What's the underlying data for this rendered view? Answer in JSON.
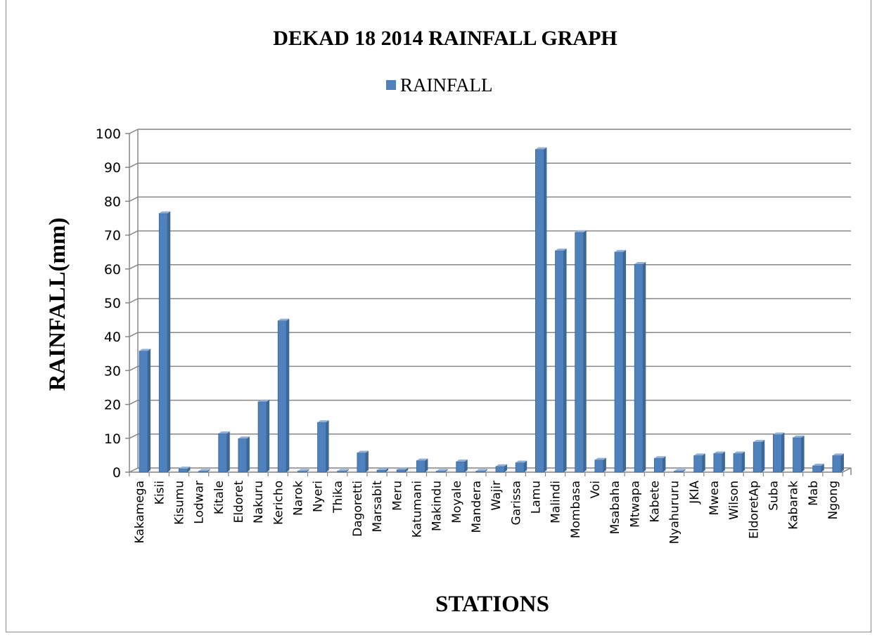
{
  "chart_data": {
    "type": "bar",
    "title": "DEKAD 18 2014 RAINFALL GRAPH",
    "xlabel": "STATIONS",
    "ylabel": "RAINFALL(mm)",
    "ylim": [
      0,
      100
    ],
    "yticks": [
      0,
      10,
      20,
      30,
      40,
      50,
      60,
      70,
      80,
      90,
      100
    ],
    "grid": true,
    "legend_position": "top",
    "categories": [
      "Kakamega",
      "Kisii",
      "Kisumu",
      "Lodwar",
      "Kitale",
      "Eldoret",
      "Nakuru",
      "Kericho",
      "Narok",
      "Nyeri",
      "Thika",
      "Dagoretti",
      "Marsabit",
      "Meru",
      "Katumani",
      "Makindu",
      "Moyale",
      "Mandera",
      "Wajir",
      "Garissa",
      "Lamu",
      "Malindi",
      "Mombasa",
      "Voi",
      "Msabaha",
      "Mtwapa",
      "Kabete",
      "Nyahururu",
      "JKIA",
      "Mwea",
      "Wilson",
      "EldoretAp",
      "Suba",
      "Kabarak",
      "Mab",
      "Ngong"
    ],
    "series": [
      {
        "name": "RAINFALL",
        "color": "#4f81bd",
        "values": [
          35.8,
          76.4,
          1.0,
          0.1,
          11.4,
          9.9,
          20.8,
          44.7,
          0.1,
          14.7,
          0.1,
          5.7,
          0.6,
          0.7,
          3.4,
          0.1,
          3.1,
          0.1,
          1.7,
          2.8,
          95.3,
          65.4,
          70.8,
          3.6,
          65.0,
          61.4,
          4.1,
          0.3,
          4.9,
          5.5,
          5.5,
          8.9,
          11.1,
          10.2,
          1.9,
          4.9
        ]
      }
    ]
  }
}
